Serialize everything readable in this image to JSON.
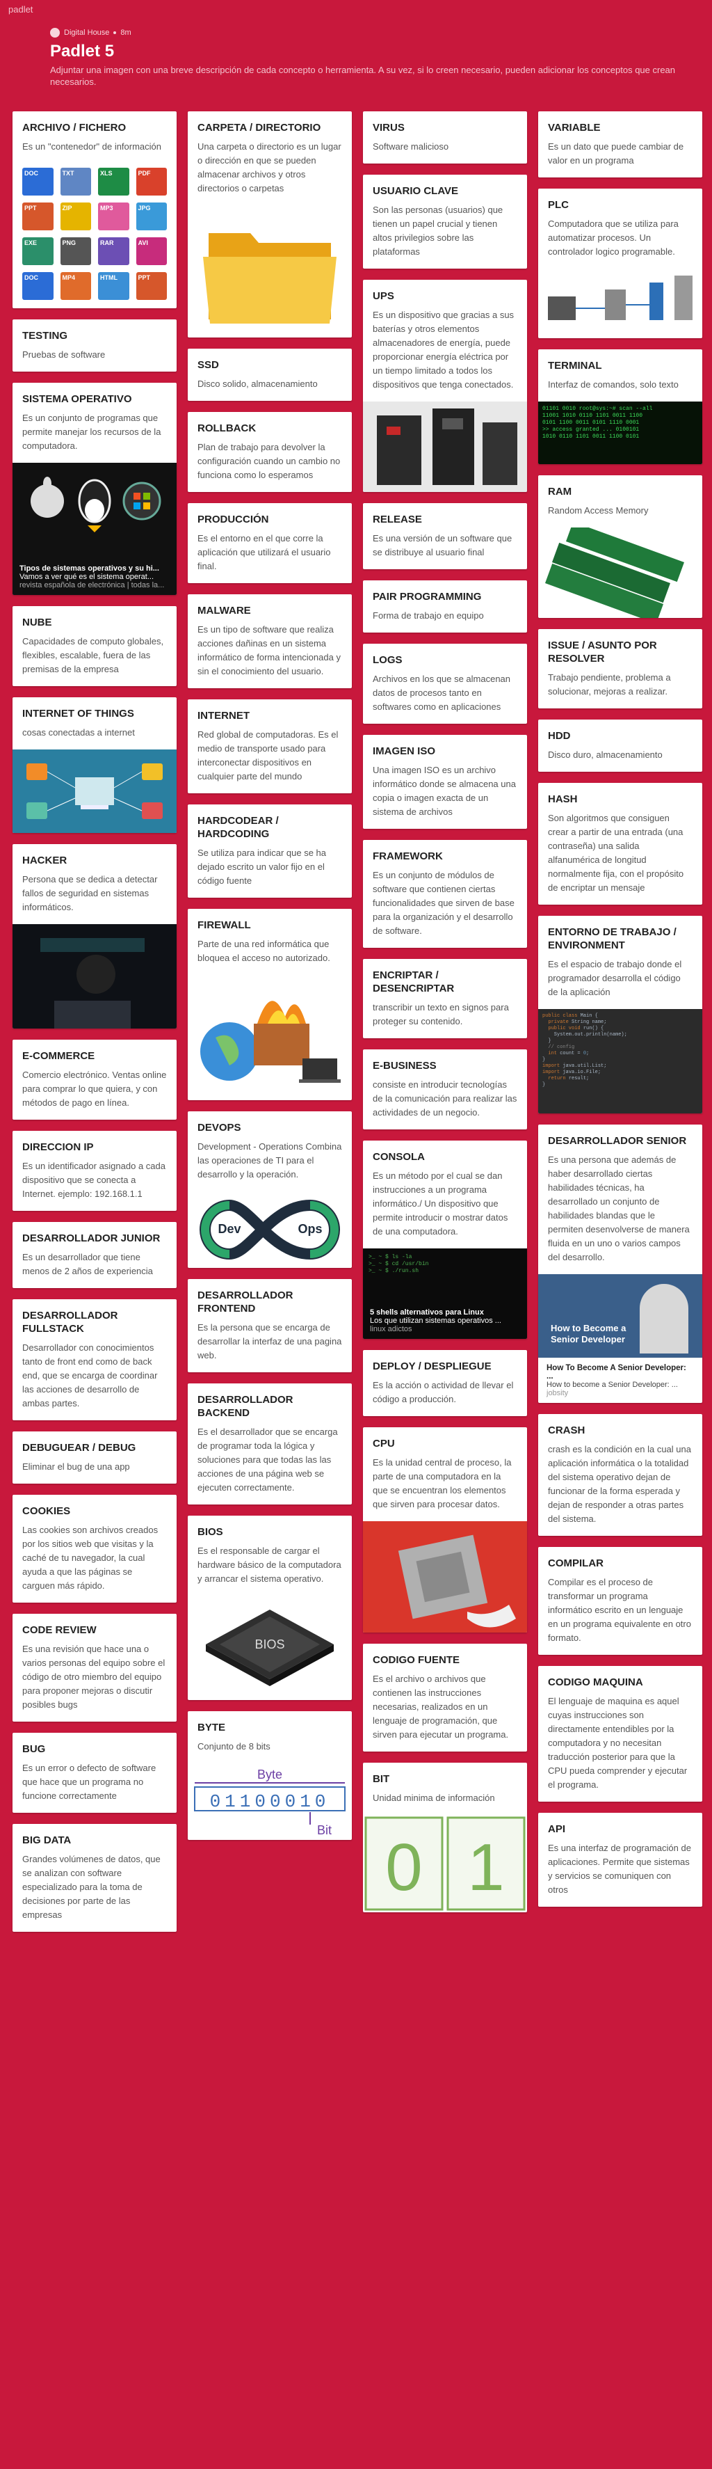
{
  "app": {
    "name": "padlet"
  },
  "header": {
    "author": "Digital House",
    "age": "8m",
    "title": "Padlet 5",
    "description": "Adjuntar una imagen con una breve descripción de cada concepto o herramienta. A su vez, si lo creen necesario, pueden adicionar los conceptos que crean necesarios."
  },
  "col1": [
    {
      "title": "Archivo / Fichero",
      "body": "Es un \"contenedor\" de información"
    },
    {
      "title": "TESTING",
      "body": "Pruebas de software"
    },
    {
      "title": "SISTEMA OPERATIVO",
      "body": "Es un conjunto de programas que permite manejar los recursos de la computadora.",
      "cap_title": "Tipos de sistemas operativos y su hi...",
      "cap_text": "Vamos a ver qué es el sistema operat...",
      "cap_src": "revista española de electrónica | todas la..."
    },
    {
      "title": "NUBE",
      "body": "Capacidades de computo globales, flexibles, escalable, fuera de las premisas de la empresa"
    },
    {
      "title": "INTERNET OF THINGS",
      "body": "cosas conectadas a internet"
    },
    {
      "title": "HACKER",
      "body": "Persona que se dedica a detectar fallos de seguridad en sistemas informáticos."
    },
    {
      "title": "E-COMMERCE",
      "body": "Comercio electrónico. Ventas online para comprar lo que quiera, y con métodos de pago en línea."
    },
    {
      "title": "DIRECCION IP",
      "body": "Es un identificador asignado a cada dispositivo que se conecta a Internet. ejemplo: 192.168.1.1"
    },
    {
      "title": "DESARROLLADOR JUNIOR",
      "body": "Es un desarrollador que tiene menos de 2 años de experiencia"
    },
    {
      "title": "DESARROLLADOR FULLSTACK",
      "body": "Desarrollador con conocimientos tanto de front end como de back end, que se encarga de coordinar las acciones de desarrollo de ambas partes."
    },
    {
      "title": "DEBUGUEAR / DEBUG",
      "body": "Eliminar el bug de una app"
    },
    {
      "title": "COOKIES",
      "body": "Las cookies son archivos creados por los sitios web que visitas y la caché de tu navegador, la cual ayuda a que las páginas se carguen más rápido."
    },
    {
      "title": "CODE REVIEW",
      "body": "Es una revisión que hace una o varios personas del equipo sobre el código de otro miembro del equipo para proponer mejoras o discutir posibles bugs"
    },
    {
      "title": "BUG",
      "body": "Es un error o defecto de software que hace que un programa no funcione correctamente"
    },
    {
      "title": "BIG DATA",
      "body": "Grandes volúmenes de datos, que se analizan con software especializado para la toma de decisiones por parte de las empresas"
    }
  ],
  "col2": [
    {
      "title": "Carpeta / Directorio",
      "body": "Una carpeta o directorio es un lugar o dirección en que se pueden almacenar archivos y otros directorios o carpetas"
    },
    {
      "title": "SSD",
      "body": "Disco solido, almacenamiento"
    },
    {
      "title": "ROLLBACK",
      "body": "Plan de trabajo para devolver la configuración cuando un cambio no funciona como lo esperamos"
    },
    {
      "title": "PRODUCCIÓN",
      "body": "Es el entorno en el que corre la aplicación que utilizará el usuario final."
    },
    {
      "title": "MALWARE",
      "body": "Es un tipo de software que realiza acciones dañinas en un sistema informático de forma intencionada y sin el conocimiento del usuario."
    },
    {
      "title": "INTERNET",
      "body": "Red global de computadoras. Es el medio de transporte usado para interconectar dispositivos en cualquier parte del mundo"
    },
    {
      "title": "HARDCODEAR / HARDCODING",
      "body": "Se utiliza para indicar que se ha dejado escrito un valor fijo en el código fuente"
    },
    {
      "title": "FIREWALL",
      "body": "Parte de una red informática que bloquea el acceso no autorizado."
    },
    {
      "title": "DEVOPS",
      "body": "Development - Operations Combina las operaciones de TI para el desarrollo y la operación.",
      "dev": "Dev",
      "ops": "Ops"
    },
    {
      "title": "DESARROLLADOR FRONTEND",
      "body": "Es la persona que se encarga de desarrollar la interfaz de una pagina web."
    },
    {
      "title": "DESARROLLADOR BACKEND",
      "body": "Es el desarrollador que se encarga de programar toda la lógica y soluciones para que todas las las acciones de una página web se ejecuten correctamente."
    },
    {
      "title": "BIOS",
      "body": "Es el responsable de cargar el hardware básico de la computadora y arrancar el sistema operativo.",
      "chip": "BIOS"
    },
    {
      "title": "BYTE",
      "body": "Conjunto de 8 bits",
      "byte_label": "Byte",
      "bits": "01100010",
      "bit_label": "Bit"
    }
  ],
  "col3": [
    {
      "title": "VIRUS",
      "body": "Software malicioso"
    },
    {
      "title": "USUARIO CLAVE",
      "body": "Son las personas (usuarios) que tienen un papel crucial y tienen altos privilegios sobre las plataformas"
    },
    {
      "title": "UPS",
      "body": "Es un dispositivo que gracias a sus baterías y otros elementos almacenadores de energía, puede proporcionar energía eléctrica por un tiempo limitado a todos los dispositivos que tenga conectados."
    },
    {
      "title": "RELEASE",
      "body": "Es una versión de un software que se distribuye al usuario final"
    },
    {
      "title": "PAIR PROGRAMMING",
      "body": "Forma de trabajo en equipo"
    },
    {
      "title": "LOGS",
      "body": "Archivos en los que se almacenan datos de procesos tanto en softwares como en aplicaciones"
    },
    {
      "title": "IMAGEN ISO",
      "body": "Una imagen ISO es un archivo informático donde se almacena una copia o imagen exacta de un sistema de archivos"
    },
    {
      "title": "FRAMEWORK",
      "body": "Es un conjunto de módulos de software que contienen ciertas funcionalidades que sirven de base para la organización y el desarrollo de software."
    },
    {
      "title": "ENCRIPTAR / DESENCRIPTAR",
      "body": "transcribir un texto en signos para proteger su contenido."
    },
    {
      "title": "E-BUSINESS",
      "body": "consiste en introducir tecnologías de la comunicación para realizar las actividades de un negocio."
    },
    {
      "title": "CONSOLA",
      "body": "Es un método por el cual se dan instrucciones a un programa informático./ Un dispositivo que permite introducir o mostrar datos de una computadora.",
      "cap_title": "5 shells alternativos para Linux",
      "cap_text": "Los que utilizan sistemas operativos ...",
      "cap_src": "linux adictos"
    },
    {
      "title": "DEPLOY / DESPLIEGUE",
      "body": "Es la acción o actividad de llevar el código a producción."
    },
    {
      "title": "CPU",
      "body": "Es la unidad central de proceso, la parte de una computadora en la que se encuentran los elementos que sirven para procesar datos."
    },
    {
      "title": "CODIGO FUENTE",
      "body": "Es el archivo o archivos que contienen las instrucciones necesarias, realizados en un lenguaje de programación, que sirven para ejecutar un programa."
    },
    {
      "title": "BIT",
      "body": "Unidad minima de información",
      "zero": "0",
      "one": "1"
    }
  ],
  "col4": [
    {
      "title": "VARIABLE",
      "body": "Es un dato que puede cambiar de valor en un programa"
    },
    {
      "title": "PLC",
      "body": "Computadora que se utiliza para automatizar procesos. Un controlador logico programable."
    },
    {
      "title": "TERMINAL",
      "body": "Interfaz de comandos, solo texto"
    },
    {
      "title": "RAM",
      "body": "Random Access Memory"
    },
    {
      "title": "ISSUE / ASUNTO POR RESOLVER",
      "body": "Trabajo pendiente, problema a solucionar, mejoras a realizar."
    },
    {
      "title": "HDD",
      "body": "Disco duro, almacenamiento"
    },
    {
      "title": "HASH",
      "body": "Son algoritmos que consiguen crear a partir de una entrada (una contraseña) una salida alfanumérica de longitud normalmente fija, con el propósito de encriptar un mensaje"
    },
    {
      "title": "ENTORNO DE TRABAJO / ENVIRONMENT",
      "body": "Es el espacio de trabajo donde el programador desarrolla el código de la aplicación"
    },
    {
      "title": "DESARROLLADOR SENIOR",
      "body": "Es una persona que además de haber desarrollado ciertas habilidades técnicas, ha desarrollado un conjunto de habilidades blandas que le permiten desenvolverse de manera fluida en un uno o varios campos del desarrollo.",
      "overlay": "How to Become a Senior Developer",
      "cap_title": "How To Become A Senior Developer: ...",
      "cap_text": "How to become a Senior Developer: ...",
      "cap_src": "jobsity"
    },
    {
      "title": "CRASH",
      "body": "crash es la condición en la cual una aplicación informática o la totalidad del sistema operativo dejan de funcionar de la forma esperada y dejan de responder a otras partes del sistema."
    },
    {
      "title": "COMPILAR",
      "body": "Compilar es el proceso de transformar un programa informático escrito en un lenguaje en un programa equivalente en otro formato."
    },
    {
      "title": "CODIGO MAQUINA",
      "body": "El lenguaje de maquina es aquel cuyas instrucciones son directamente entendibles por la computadora y no necesitan traducción posterior para que la CPU pueda comprender y ejecutar el programa."
    },
    {
      "title": "API",
      "body": "Es una interfaz de programación de aplicaciones. Permite que sistemas y servicios se comuniquen con otros"
    }
  ],
  "file_icons": [
    "DOC",
    "TXT",
    "XLS",
    "PDF",
    "PPT",
    "ZIP",
    "MP3",
    "JPG",
    "EXE",
    "PNG",
    "RAR",
    "AVI",
    "DOC",
    "MP4",
    "HTML",
    "PPT"
  ]
}
